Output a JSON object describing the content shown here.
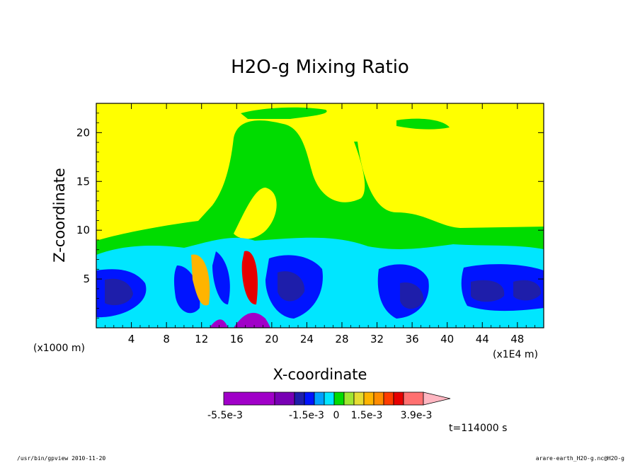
{
  "chart_data": {
    "type": "heatmap",
    "title": "H2O-g Mixing Ratio",
    "xlabel": "X-coordinate",
    "ylabel": "Z-coordinate",
    "x_unit_left": "(x1000 m)",
    "x_unit_right": "(x1E4 m)",
    "xlim": [
      0,
      51
    ],
    "ylim": [
      0,
      23
    ],
    "x_ticks": [
      "4",
      "8",
      "12",
      "16",
      "20",
      "24",
      "28",
      "32",
      "36",
      "40",
      "44",
      "48"
    ],
    "x_tick_values": [
      4,
      8,
      12,
      16,
      20,
      24,
      28,
      32,
      36,
      40,
      44,
      48
    ],
    "y_ticks": [
      "5",
      "10",
      "15",
      "20"
    ],
    "y_tick_values": [
      5,
      10,
      15,
      20
    ],
    "colorbar": {
      "labels": [
        "-5.5e-3",
        "-1.5e-3",
        "0",
        "1.5e-3",
        "3.9e-3"
      ],
      "colors": [
        "#a000c8",
        "#7800b4",
        "#1e1eaa",
        "#0014ff",
        "#00a0ff",
        "#00e6ff",
        "#00dc00",
        "#a0e632",
        "#e6dc32",
        "#ffb400",
        "#ff8c00",
        "#ff3c00",
        "#e60000",
        "#ff7070",
        "#ffb6c1"
      ]
    },
    "time_label": "t=114000 s",
    "regions": {
      "background": "#ffff00",
      "green": "#00dc00",
      "cyan": "#00e6ff",
      "blue": "#0014ff",
      "navy": "#1e1eaa",
      "orange": "#ffb400",
      "red": "#e60000",
      "purple": "#a000c8"
    }
  },
  "footer": {
    "left": "/usr/bin/gpview  2010-11-20",
    "right": "arare-earth_H2O-g.nc@H2O-g"
  }
}
